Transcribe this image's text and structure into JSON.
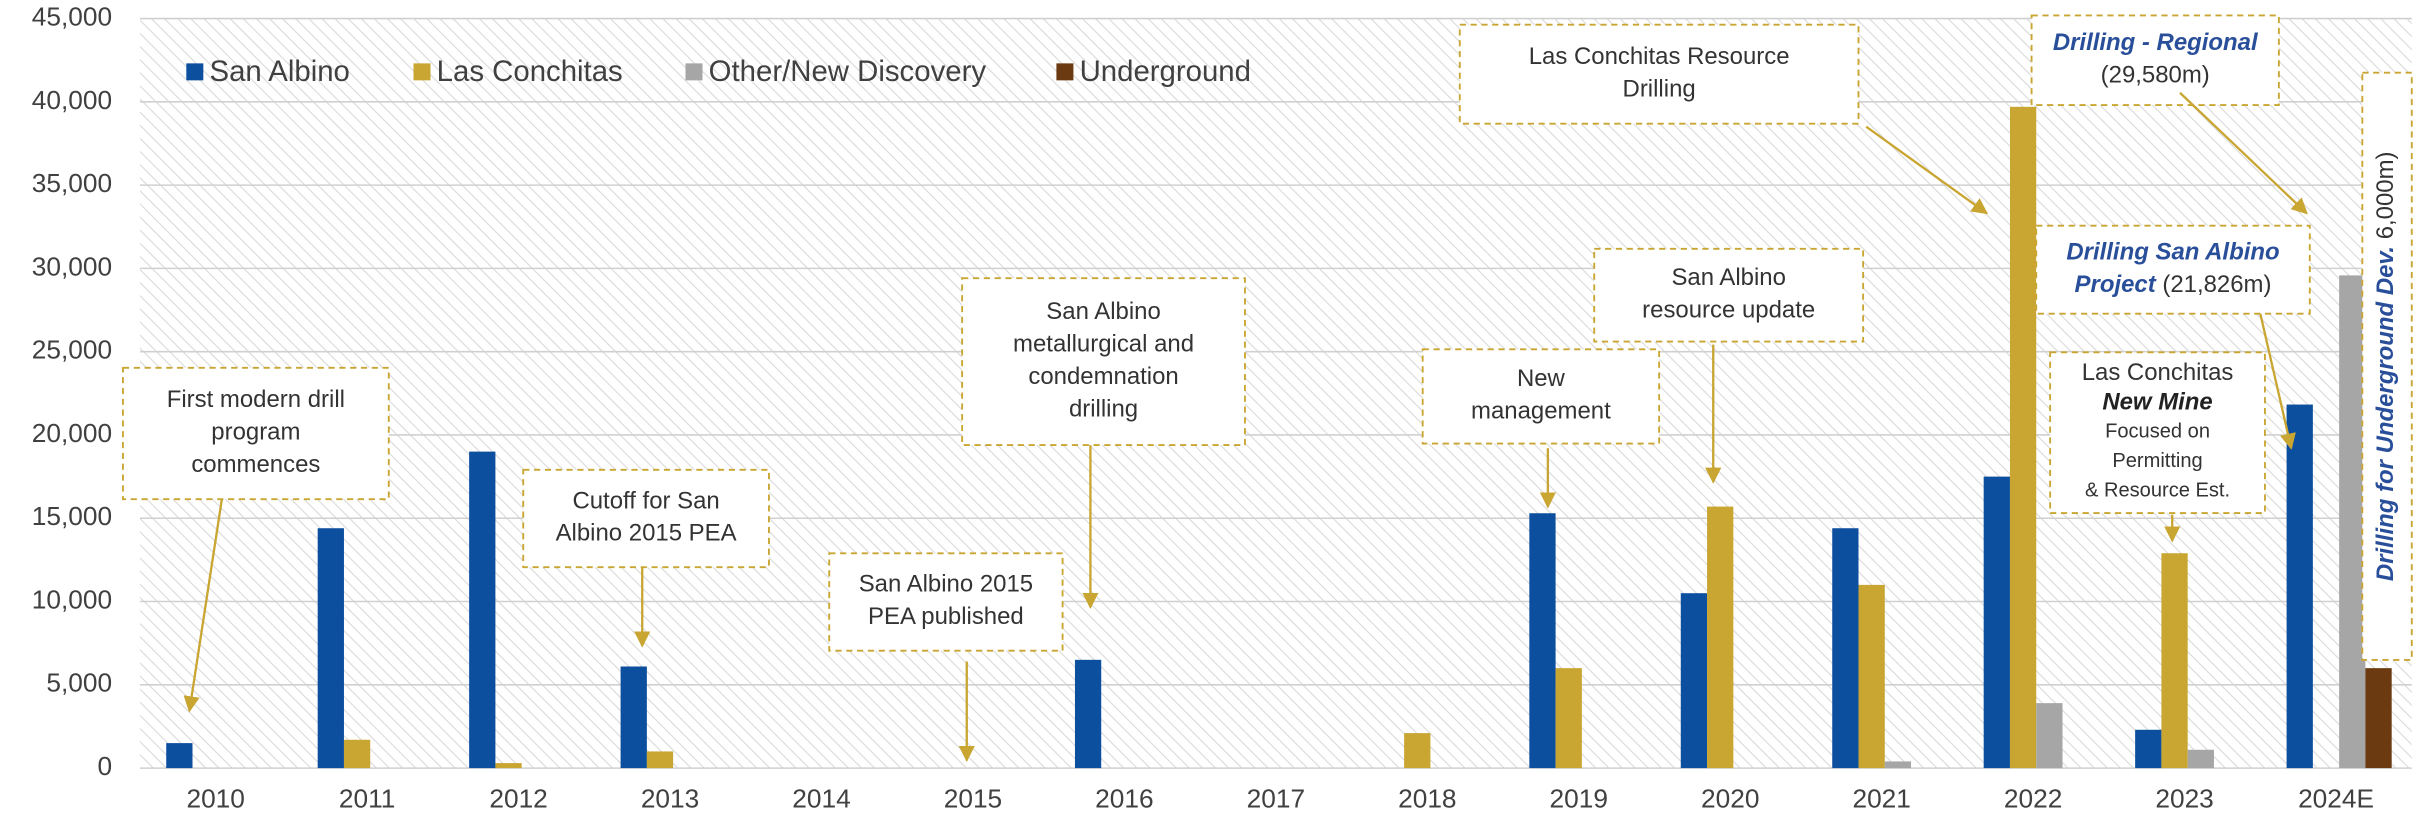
{
  "chart_data": {
    "type": "bar",
    "categories": [
      "2010",
      "2011",
      "2012",
      "2013",
      "2014",
      "2015",
      "2016",
      "2017",
      "2018",
      "2019",
      "2020",
      "2021",
      "2022",
      "2023",
      "2024E"
    ],
    "series": [
      {
        "name": "San Albino",
        "color": "#0b4f9e",
        "values": [
          1500,
          14400,
          19000,
          6100,
          0,
          0,
          6500,
          0,
          0,
          15300,
          10500,
          14400,
          17500,
          2300,
          21826
        ]
      },
      {
        "name": "Las Conchitas",
        "color": "#c9a532",
        "values": [
          0,
          1700,
          300,
          1000,
          0,
          0,
          0,
          0,
          2100,
          6000,
          15700,
          11000,
          39700,
          12900,
          0
        ]
      },
      {
        "name": "Other/New Discovery",
        "color": "#a6a6a6",
        "values": [
          0,
          0,
          0,
          0,
          0,
          0,
          0,
          0,
          0,
          0,
          0,
          400,
          3900,
          1100,
          29580
        ]
      },
      {
        "name": "Underground",
        "color": "#6b3a10",
        "values": [
          0,
          0,
          0,
          0,
          0,
          0,
          0,
          0,
          0,
          0,
          0,
          0,
          0,
          0,
          6000
        ]
      }
    ],
    "ylim": [
      0,
      45000
    ],
    "yticks": [
      0,
      {
        "value": 5000,
        "label": "5,000"
      },
      {
        "value": 10000,
        "label": "10,000"
      },
      {
        "value": 15000,
        "label": "15,000"
      },
      {
        "value": 20000,
        "label": "20,000"
      },
      {
        "value": 25000,
        "label": "25,000"
      },
      {
        "value": 30000,
        "label": "30,000"
      },
      {
        "value": 35000,
        "label": "35,000"
      },
      {
        "value": 40000,
        "label": "40,000"
      },
      {
        "value": 45000,
        "label": "45,000"
      }
    ],
    "grid": true,
    "legend": "top-left",
    "annotations": [
      {
        "lines": [
          [
            "First modern drill"
          ],
          [
            "program"
          ],
          [
            "commences"
          ]
        ]
      },
      {
        "lines": [
          [
            "Cutoff for San"
          ],
          [
            "Albino 2015 PEA"
          ]
        ]
      },
      {
        "lines": [
          [
            "San Albino 2015"
          ],
          [
            "PEA published"
          ]
        ]
      },
      {
        "lines": [
          [
            "San Albino"
          ],
          [
            "metallurgical and"
          ],
          [
            "condemnation"
          ],
          [
            "drilling"
          ]
        ]
      },
      {
        "lines": [
          [
            "New"
          ],
          [
            "management"
          ]
        ]
      },
      {
        "lines": [
          [
            "San Albino"
          ],
          [
            "resource update"
          ]
        ]
      },
      {
        "lines": [
          [
            "Las Conchitas Resource"
          ],
          [
            "Drilling"
          ]
        ]
      },
      {
        "lines": [
          [
            "Drilling - Regional"
          ],
          [
            "(29,580m)"
          ]
        ]
      },
      {
        "lines": [
          [
            "Drilling San Albino"
          ],
          [
            "Project",
            "  (21,826m)"
          ]
        ]
      },
      {
        "lines": [
          [
            "Las Conchitas"
          ],
          [
            "New Mine"
          ],
          [
            "Focused on"
          ],
          [
            "Permitting"
          ],
          [
            "& Resource Est."
          ]
        ]
      },
      {
        "lines": [
          [
            "Drilling for Underground Dev.",
            " 6,000m)"
          ]
        ]
      }
    ]
  }
}
